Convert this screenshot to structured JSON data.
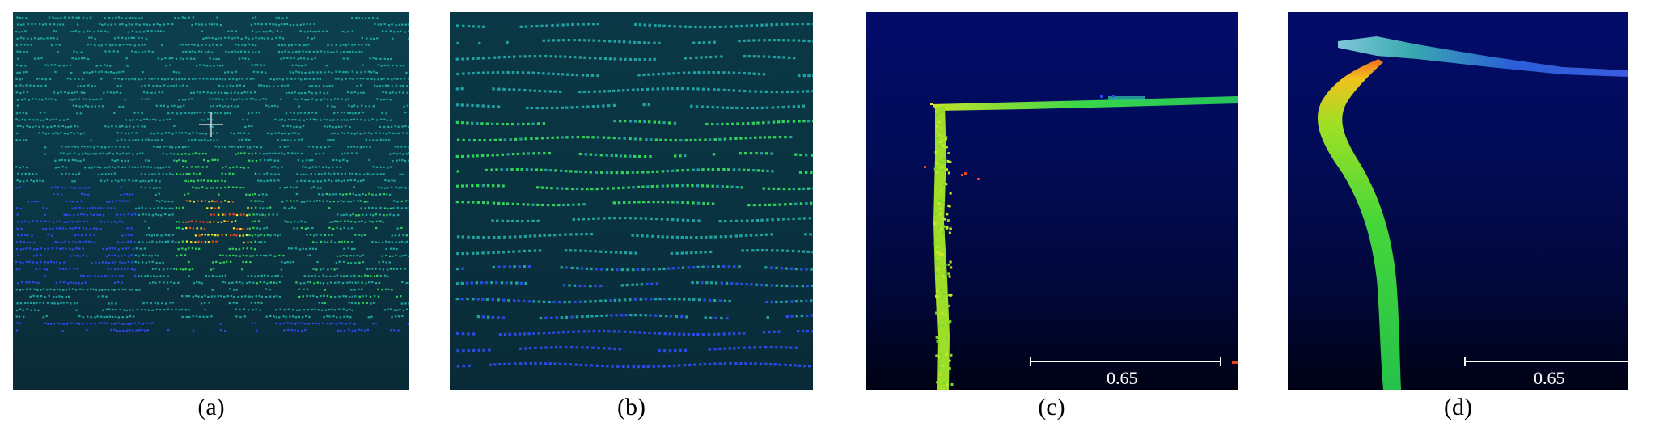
{
  "panels": [
    {
      "id": "a",
      "caption": "(a)"
    },
    {
      "id": "b",
      "caption": "(b)"
    },
    {
      "id": "c",
      "caption": "(c)",
      "scale_bar_label": "0.65"
    },
    {
      "id": "d",
      "caption": "(d)",
      "scale_bar_label": "0.65"
    }
  ],
  "colors": {
    "teal": "#1fa3a0",
    "green": "#2fd35a",
    "yellow": "#f4ec24",
    "red": "#f0421e",
    "blue": "#2a4be8"
  }
}
